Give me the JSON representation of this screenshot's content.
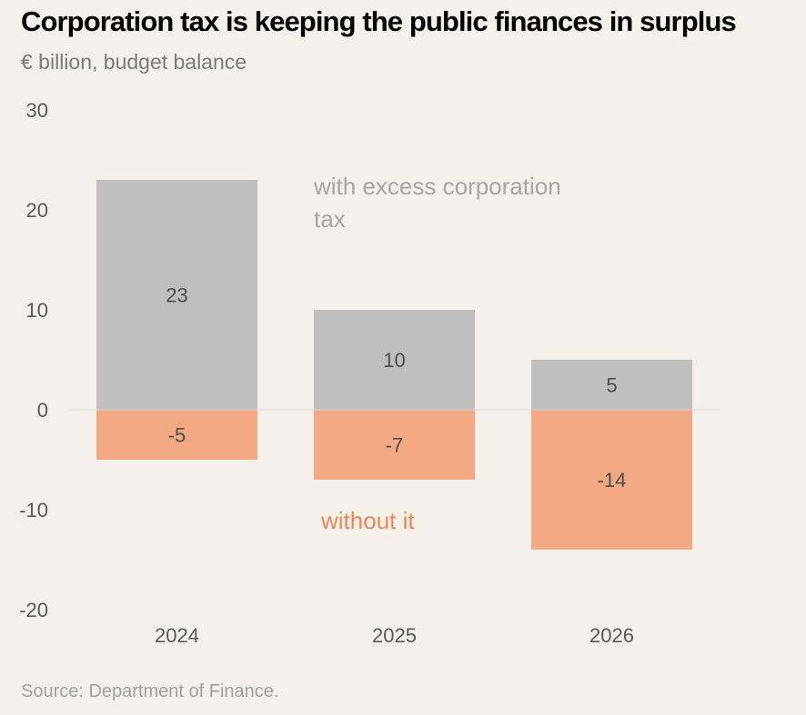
{
  "header": {
    "title": "Corporation tax is keeping the public finances in surplus",
    "subtitle": "€ billion, budget balance"
  },
  "footer": {
    "source": "Source: Department of Finance."
  },
  "colors": {
    "with_bar": "#bfbfbf",
    "without_bar": "#f2a984",
    "without_text": "#e8865a",
    "zero_line": "#d9d9d9",
    "background": "#f5f0ea"
  },
  "chart_data": {
    "type": "bar",
    "title": "Corporation tax is keeping the public finances in surplus",
    "subtitle": "€ billion, budget balance",
    "xlabel": "",
    "ylabel": "€ billion",
    "categories": [
      "2024",
      "2025",
      "2026"
    ],
    "series": [
      {
        "name": "with excess corporation tax",
        "values": [
          23,
          10,
          5
        ]
      },
      {
        "name": "without it",
        "values": [
          -5,
          -7,
          -14
        ]
      }
    ],
    "ylim": [
      -20,
      30
    ],
    "yticks": [
      30,
      20,
      10,
      0,
      -10,
      -20
    ],
    "ytick_labels": [
      "30",
      "20",
      "10",
      "0",
      "-10",
      "-20"
    ],
    "data_labels": [
      [
        "23",
        "10",
        "5"
      ],
      [
        "-5",
        "-7",
        "-14"
      ]
    ],
    "annotations": [
      {
        "text_lines": [
          "with excess corporation",
          "tax"
        ],
        "series": 0
      },
      {
        "text_lines": [
          "without it"
        ],
        "series": 1
      }
    ],
    "grid": false,
    "legend": "none (direct labels)",
    "source": "Source: Department of Finance."
  }
}
